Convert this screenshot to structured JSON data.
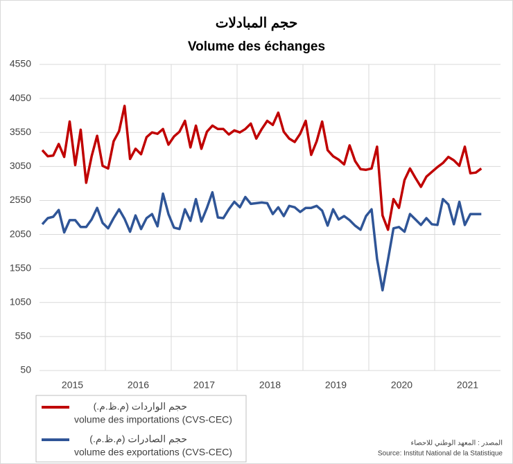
{
  "chart_data": {
    "type": "line",
    "title": "حجم المبادلات",
    "subtitle": "Volume des échanges",
    "categories": [
      null,
      null,
      null,
      null,
      null,
      "2015",
      null,
      null,
      null,
      null,
      null,
      null,
      null,
      null,
      null,
      null,
      null,
      "2016",
      null,
      null,
      null,
      null,
      null,
      null,
      null,
      null,
      null,
      null,
      null,
      "2017",
      null,
      null,
      null,
      null,
      null,
      null,
      null,
      null,
      null,
      null,
      null,
      "2018",
      null,
      null,
      null,
      null,
      null,
      null,
      null,
      null,
      null,
      null,
      null,
      "2019",
      null,
      null,
      null,
      null,
      null,
      null,
      null,
      null,
      null,
      null,
      null,
      "2020",
      null,
      null,
      null,
      null,
      null,
      null,
      null,
      null,
      null,
      null,
      null,
      "2021",
      null,
      null,
      null
    ],
    "series": [
      {
        "name": "volume des importations (CVS-CEC)",
        "label_ar": "حجم الواردات (م.ظ.م.)",
        "color": "#c00000",
        "values": [
          3290,
          3200,
          3210,
          3380,
          3190,
          3710,
          3070,
          3590,
          2810,
          3200,
          3500,
          3060,
          3020,
          3420,
          3570,
          3940,
          3160,
          3310,
          3230,
          3480,
          3550,
          3530,
          3600,
          3370,
          3490,
          3560,
          3720,
          3330,
          3650,
          3310,
          3560,
          3650,
          3600,
          3600,
          3520,
          3580,
          3550,
          3600,
          3680,
          3460,
          3600,
          3720,
          3660,
          3840,
          3560,
          3460,
          3410,
          3530,
          3720,
          3220,
          3420,
          3710,
          3290,
          3200,
          3150,
          3080,
          3360,
          3130,
          3010,
          3000,
          3020,
          3340,
          2330,
          2120,
          2570,
          2440,
          2850,
          3020,
          2880,
          2750,
          2900,
          2970,
          3040,
          3100,
          3190,
          3140,
          3060,
          3340,
          2950,
          2960,
          3020
        ]
      },
      {
        "name": "volume des exportations (CVS-CEC)",
        "label_ar": "حجم الصادرات (م.ظ.م.)",
        "color": "#2f5597",
        "values": [
          2200,
          2290,
          2310,
          2410,
          2080,
          2260,
          2260,
          2160,
          2160,
          2270,
          2440,
          2220,
          2140,
          2290,
          2420,
          2280,
          2090,
          2330,
          2130,
          2290,
          2350,
          2170,
          2650,
          2350,
          2150,
          2130,
          2420,
          2250,
          2570,
          2240,
          2440,
          2670,
          2300,
          2290,
          2420,
          2530,
          2450,
          2600,
          2500,
          2510,
          2520,
          2510,
          2350,
          2450,
          2320,
          2470,
          2450,
          2380,
          2440,
          2440,
          2470,
          2400,
          2180,
          2420,
          2270,
          2320,
          2260,
          2180,
          2120,
          2320,
          2420,
          1690,
          1230,
          1680,
          2140,
          2160,
          2090,
          2350,
          2270,
          2190,
          2290,
          2200,
          2190,
          2570,
          2490,
          2200,
          2530,
          2190,
          2350,
          2350,
          2350
        ]
      }
    ],
    "ylim": [
      50,
      4550
    ],
    "yticks": [
      50,
      550,
      1050,
      1550,
      2050,
      2550,
      3050,
      3550,
      4050,
      4550
    ],
    "grid": true,
    "source_ar": "المصدر : المعهد الوطني للاحصاء",
    "source": "Source: Institut National de la Statistique"
  }
}
